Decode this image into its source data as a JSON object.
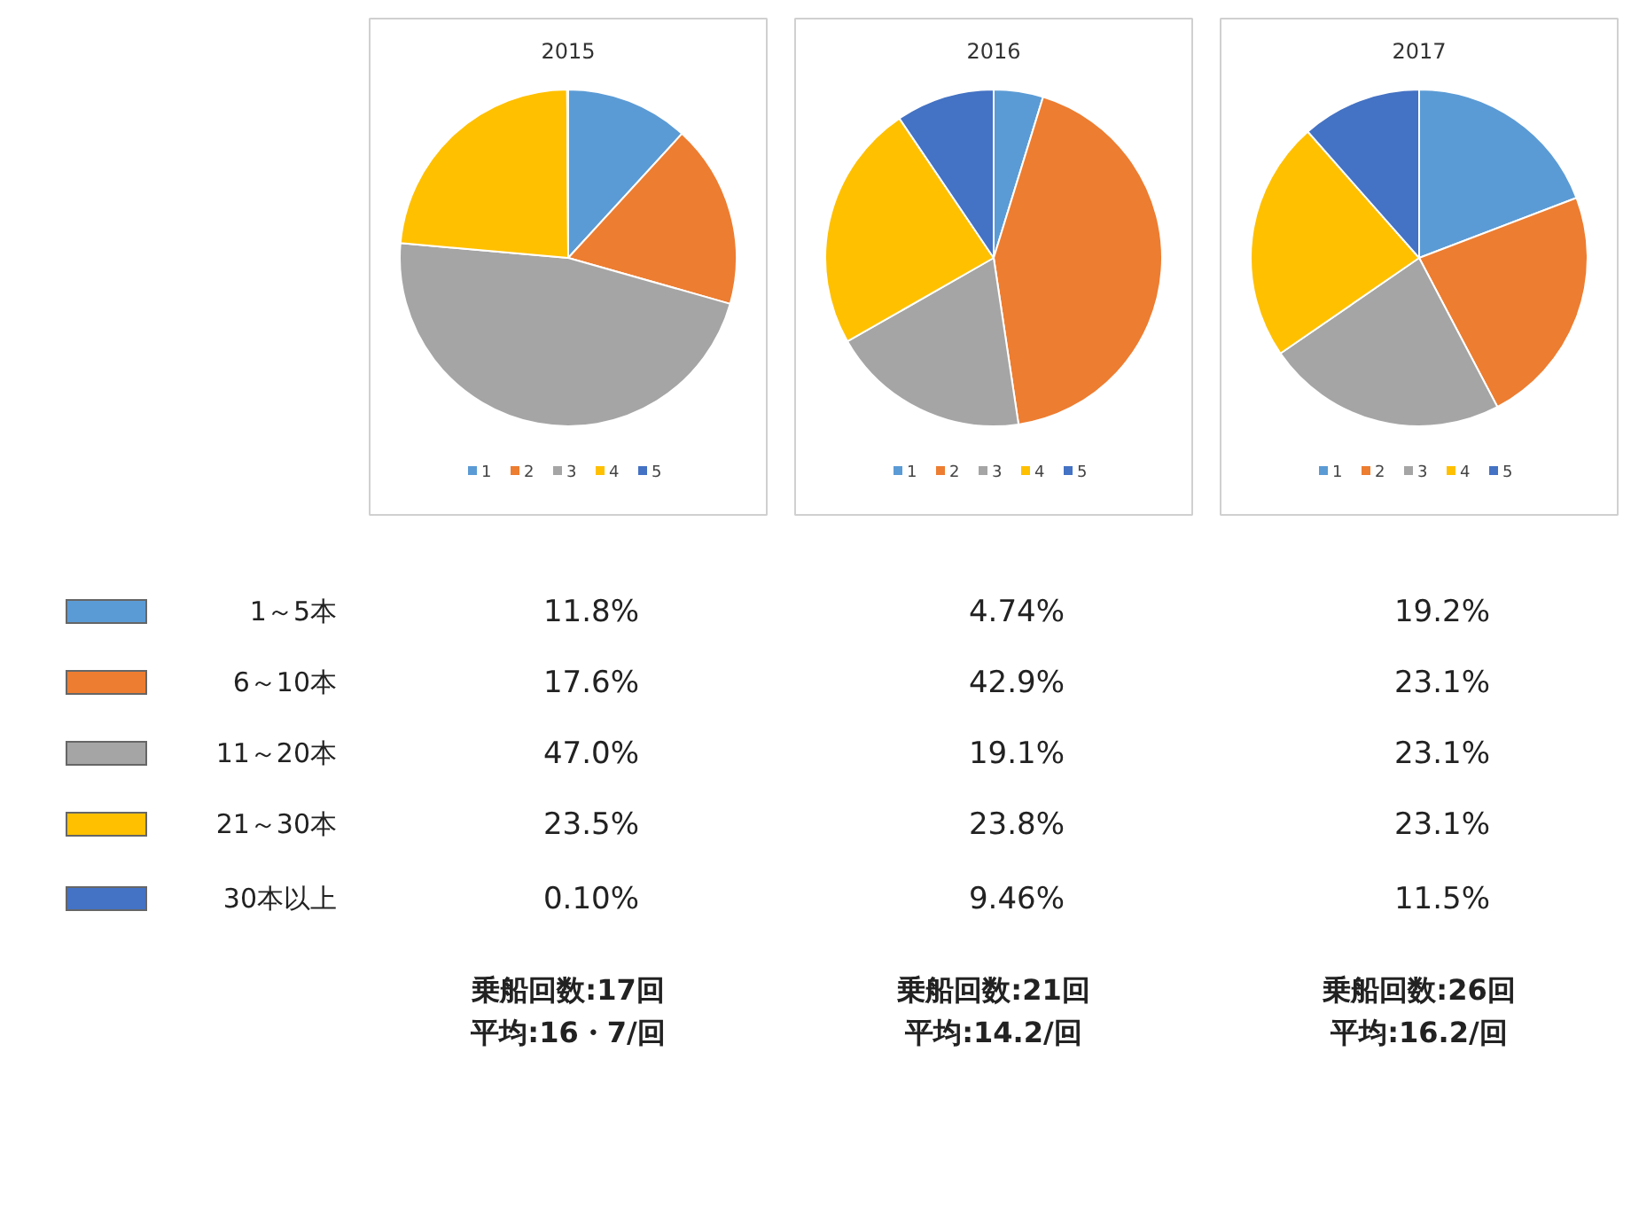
{
  "chart_data": [
    {
      "type": "pie",
      "title": "2015",
      "categories": [
        "1",
        "2",
        "3",
        "4",
        "5"
      ],
      "values": [
        11.8,
        17.6,
        47.0,
        23.5,
        0.1
      ],
      "colors": [
        "#5b9bd5",
        "#ed7d31",
        "#a5a5a5",
        "#ffc000",
        "#4472c4"
      ],
      "legend": "bottom"
    },
    {
      "type": "pie",
      "title": "2016",
      "categories": [
        "1",
        "2",
        "3",
        "4",
        "5"
      ],
      "values": [
        4.74,
        42.9,
        19.1,
        23.8,
        9.46
      ],
      "colors": [
        "#5b9bd5",
        "#ed7d31",
        "#a5a5a5",
        "#ffc000",
        "#4472c4"
      ],
      "legend": "bottom"
    },
    {
      "type": "pie",
      "title": "2017",
      "categories": [
        "1",
        "2",
        "3",
        "4",
        "5"
      ],
      "values": [
        19.2,
        23.1,
        23.1,
        23.1,
        11.5
      ],
      "colors": [
        "#5b9bd5",
        "#ed7d31",
        "#a5a5a5",
        "#ffc000",
        "#4472c4"
      ],
      "legend": "bottom"
    },
    {
      "type": "other",
      "annotations": [
        "1～5本",
        "11.8%",
        "4.74%",
        "19.2%",
        "6～10本",
        "17.6%",
        "42.9%",
        "23.1%",
        "11～20本",
        "47.0%",
        "19.1%",
        "23.1%",
        "21～30本",
        "23.5%",
        "23.8%",
        "23.1%",
        "30本以上",
        "0.10%",
        "9.46%",
        "11.5%",
        "乗船回数:17回",
        "平均:16・7/回",
        "乗船回数:21回",
        "平均:14.2/回",
        "乗船回数:26回",
        "平均:16.2/回"
      ]
    }
  ]
}
